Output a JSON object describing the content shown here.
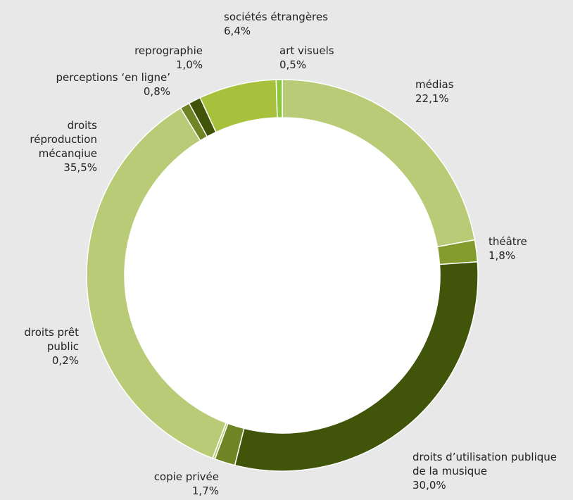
{
  "chart_data": {
    "type": "pie",
    "style": "donut",
    "title": "",
    "slices": [
      {
        "label": "médias",
        "value_text": "22,1%",
        "value": 22.1,
        "color": "#b9cb77"
      },
      {
        "label": "théâtre",
        "value_text": "1,8%",
        "value": 1.8,
        "color": "#849c2d"
      },
      {
        "label": "droits d’utilisation publique de la musique",
        "label_lines": [
          "droits d’utilisation publique",
          "de la musique"
        ],
        "value_text": "30,0%",
        "value": 30.0,
        "color": "#405509"
      },
      {
        "label": "copie privée",
        "value_text": "1,7%",
        "value": 1.7,
        "color": "#6f8525"
      },
      {
        "label": "droits prêt public",
        "label_lines": [
          "droits prêt",
          "public"
        ],
        "value_text": "0,2%",
        "value": 0.2,
        "color": "#b9cb77"
      },
      {
        "label": "droits réproduction mécanqiue",
        "label_lines": [
          "droits",
          "réproduction",
          "mécanqiue"
        ],
        "value_text": "35,5%",
        "value": 35.5,
        "color": "#b9cb77"
      },
      {
        "label": "perceptions ‘en ligne’",
        "value_text": "0,8%",
        "value": 0.8,
        "color": "#6f8525"
      },
      {
        "label": "reprographie",
        "value_text": "1,0%",
        "value": 1.0,
        "color": "#3f5409"
      },
      {
        "label": "sociétés étrangères",
        "value_text": "6,4%",
        "value": 6.4,
        "color": "#a7c13c"
      },
      {
        "label": "art visuels",
        "value_text": "0,5%",
        "value": 0.5,
        "color": "#8dc63f"
      }
    ]
  }
}
